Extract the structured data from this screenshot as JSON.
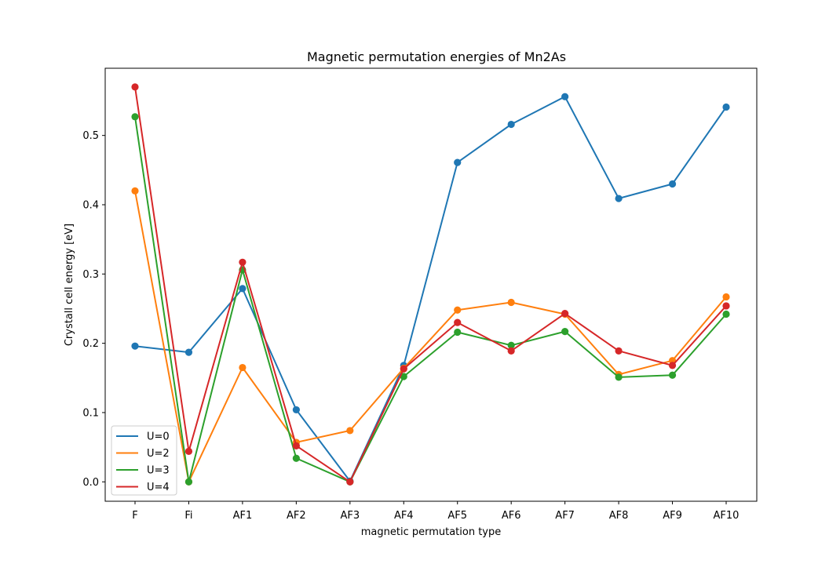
{
  "chart_data": {
    "type": "line",
    "title": "Magnetic permutation energies of Mn2As",
    "xlabel": "magnetic permutation type",
    "ylabel": "Crystall cell energy [eV]",
    "categories": [
      "F",
      "Fi",
      "AF1",
      "AF2",
      "AF3",
      "AF4",
      "AF5",
      "AF6",
      "AF7",
      "AF8",
      "AF9",
      "AF10"
    ],
    "ylim": [
      -0.028,
      0.597
    ],
    "yticks": [
      "0.0",
      "0.1",
      "0.2",
      "0.3",
      "0.4",
      "0.5"
    ],
    "legend_position": "lower-left",
    "grid": false,
    "series": [
      {
        "name": "U=0",
        "color": "#1f77b4",
        "values": [
          0.196,
          0.187,
          0.279,
          0.104,
          0.001,
          0.168,
          0.461,
          0.516,
          0.556,
          0.409,
          0.43,
          0.541
        ]
      },
      {
        "name": "U=2",
        "color": "#ff7f0e",
        "values": [
          0.42,
          0.0,
          0.165,
          0.057,
          0.074,
          0.164,
          0.248,
          0.259,
          0.242,
          0.155,
          0.175,
          0.267
        ]
      },
      {
        "name": "U=3",
        "color": "#2ca02c",
        "values": [
          0.527,
          0.0,
          0.306,
          0.034,
          0.0,
          0.152,
          0.216,
          0.197,
          0.217,
          0.151,
          0.154,
          0.242
        ]
      },
      {
        "name": "U=4",
        "color": "#d62728",
        "values": [
          0.57,
          0.044,
          0.317,
          0.052,
          0.0,
          0.163,
          0.23,
          0.189,
          0.243,
          0.189,
          0.168,
          0.254
        ]
      }
    ]
  }
}
